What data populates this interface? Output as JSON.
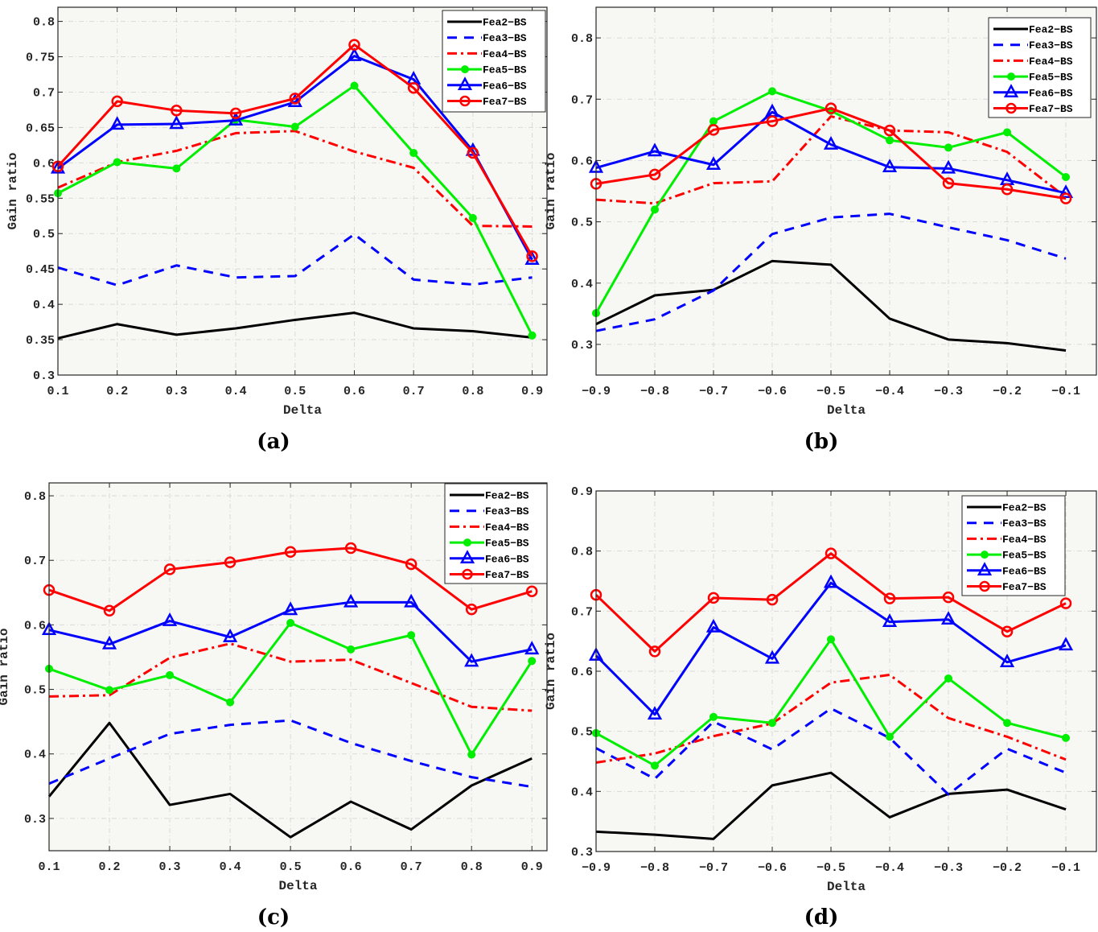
{
  "figure": {
    "captions": [
      "(a)",
      "(b)",
      "(c)",
      "(d)"
    ]
  },
  "chart_data": [
    {
      "panel": "(a)",
      "type": "line",
      "title": "",
      "xlabel": "Delta",
      "ylabel": "Gain ratio",
      "x": [
        0.1,
        0.2,
        0.3,
        0.4,
        0.5,
        0.6,
        0.7,
        0.8,
        0.9
      ],
      "xticks": [
        "0.1",
        "0.2",
        "0.3",
        "0.4",
        "0.5",
        "0.6",
        "0.7",
        "0.8",
        "0.9"
      ],
      "yticks": [
        "0.3",
        "0.35",
        "0.4",
        "0.45",
        "0.5",
        "0.55",
        "0.6",
        "0.65",
        "0.7",
        "0.75",
        "0.8"
      ],
      "xlim": [
        0.1,
        0.925
      ],
      "ylim": [
        0.3,
        0.82
      ],
      "grid": true,
      "legend_position": "top-right",
      "series": [
        {
          "name": "Fea2-BS",
          "values": [
            0.352,
            0.372,
            0.357,
            0.366,
            0.378,
            0.388,
            0.366,
            0.362,
            0.353
          ]
        },
        {
          "name": "Fea3-BS",
          "values": [
            0.452,
            0.427,
            0.455,
            0.438,
            0.44,
            0.499,
            0.435,
            0.428,
            0.438
          ]
        },
        {
          "name": "Fea4-BS",
          "values": [
            0.565,
            0.601,
            0.617,
            0.642,
            0.645,
            0.616,
            0.593,
            0.511,
            0.51
          ]
        },
        {
          "name": "Fea5-BS",
          "values": [
            0.557,
            0.601,
            0.592,
            0.661,
            0.651,
            0.709,
            0.614,
            0.522,
            0.356
          ]
        },
        {
          "name": "Fea6-BS",
          "values": [
            0.592,
            0.654,
            0.655,
            0.66,
            0.686,
            0.751,
            0.718,
            0.617,
            0.463
          ]
        },
        {
          "name": "Fea7-BS",
          "values": [
            0.595,
            0.687,
            0.674,
            0.67,
            0.691,
            0.767,
            0.706,
            0.614,
            0.468
          ]
        }
      ]
    },
    {
      "panel": "(b)",
      "type": "line",
      "title": "",
      "xlabel": "Delta",
      "ylabel": "Gain ratio",
      "x": [
        -0.9,
        -0.8,
        -0.7,
        -0.6,
        -0.5,
        -0.4,
        -0.3,
        -0.2,
        -0.1
      ],
      "xticks": [
        "-0.9",
        "-0.8",
        "-0.7",
        "-0.6",
        "-0.5",
        "-0.4",
        "-0.3",
        "-0.2",
        "-0.1"
      ],
      "yticks": [
        "0.3",
        "0.4",
        "0.5",
        "0.6",
        "0.7",
        "0.8"
      ],
      "xlim": [
        -0.9,
        -0.048
      ],
      "ylim": [
        0.25,
        0.85
      ],
      "grid": true,
      "legend_position": "top-right",
      "series": [
        {
          "name": "Fea2-BS",
          "values": [
            0.333,
            0.38,
            0.389,
            0.436,
            0.43,
            0.342,
            0.308,
            0.302,
            0.29
          ]
        },
        {
          "name": "Fea3-BS",
          "values": [
            0.322,
            0.341,
            0.388,
            0.48,
            0.507,
            0.513,
            0.491,
            0.47,
            0.44
          ]
        },
        {
          "name": "Fea4-BS",
          "values": [
            0.536,
            0.53,
            0.563,
            0.566,
            0.672,
            0.649,
            0.646,
            0.614,
            0.54
          ]
        },
        {
          "name": "Fea5-BS",
          "values": [
            0.351,
            0.52,
            0.664,
            0.713,
            0.681,
            0.633,
            0.621,
            0.646,
            0.573
          ]
        },
        {
          "name": "Fea6-BS",
          "values": [
            0.588,
            0.615,
            0.593,
            0.679,
            0.626,
            0.589,
            0.587,
            0.568,
            0.547
          ]
        },
        {
          "name": "Fea7-BS",
          "values": [
            0.562,
            0.577,
            0.65,
            0.664,
            0.685,
            0.649,
            0.563,
            0.553,
            0.538
          ]
        }
      ]
    },
    {
      "panel": "(c)",
      "type": "line",
      "title": "",
      "xlabel": "Delta",
      "ylabel": "Gain ratio",
      "x": [
        0.1,
        0.2,
        0.3,
        0.4,
        0.5,
        0.6,
        0.7,
        0.8,
        0.9
      ],
      "xticks": [
        "0.1",
        "0.2",
        "0.3",
        "0.4",
        "0.5",
        "0.6",
        "0.7",
        "0.8",
        "0.9"
      ],
      "yticks": [
        "0.3",
        "0.4",
        "0.5",
        "0.6",
        "0.7",
        "0.8"
      ],
      "xlim": [
        0.1,
        0.925
      ],
      "ylim": [
        0.25,
        0.82
      ],
      "grid": true,
      "legend_position": "top-right",
      "series": [
        {
          "name": "Fea2-BS",
          "values": [
            0.334,
            0.448,
            0.321,
            0.338,
            0.271,
            0.326,
            0.283,
            0.351,
            0.393
          ]
        },
        {
          "name": "Fea3-BS",
          "values": [
            0.354,
            0.393,
            0.431,
            0.445,
            0.452,
            0.417,
            0.389,
            0.364,
            0.349
          ]
        },
        {
          "name": "Fea4-BS",
          "values": [
            0.489,
            0.491,
            0.549,
            0.571,
            0.543,
            0.546,
            0.51,
            0.473,
            0.467
          ]
        },
        {
          "name": "Fea5-BS",
          "values": [
            0.532,
            0.499,
            0.522,
            0.48,
            0.603,
            0.562,
            0.584,
            0.399,
            0.544
          ]
        },
        {
          "name": "Fea6-BS",
          "values": [
            0.592,
            0.57,
            0.606,
            0.581,
            0.623,
            0.635,
            0.635,
            0.543,
            0.562
          ]
        },
        {
          "name": "Fea7-BS",
          "values": [
            0.654,
            0.622,
            0.686,
            0.697,
            0.713,
            0.719,
            0.694,
            0.624,
            0.652
          ]
        }
      ]
    },
    {
      "panel": "(d)",
      "type": "line",
      "title": "",
      "xlabel": "Delta",
      "ylabel": "Gain ratio",
      "x": [
        -0.9,
        -0.8,
        -0.7,
        -0.6,
        -0.5,
        -0.4,
        -0.3,
        -0.2,
        -0.1
      ],
      "xticks": [
        "-0.9",
        "-0.8",
        "-0.7",
        "-0.6",
        "-0.5",
        "-0.4",
        "-0.3",
        "-0.2",
        "-0.1"
      ],
      "yticks": [
        "0.3",
        "0.4",
        "0.5",
        "0.6",
        "0.7",
        "0.8",
        "0.9"
      ],
      "xlim": [
        -0.9,
        -0.048
      ],
      "ylim": [
        0.3,
        0.9
      ],
      "grid": true,
      "legend_position": "top-right",
      "series": [
        {
          "name": "Fea2-BS",
          "values": [
            0.333,
            0.328,
            0.321,
            0.41,
            0.431,
            0.357,
            0.396,
            0.403,
            0.37
          ]
        },
        {
          "name": "Fea3-BS",
          "values": [
            0.472,
            0.421,
            0.516,
            0.47,
            0.538,
            0.489,
            0.395,
            0.471,
            0.431
          ]
        },
        {
          "name": "Fea4-BS",
          "values": [
            0.448,
            0.463,
            0.492,
            0.513,
            0.581,
            0.594,
            0.522,
            0.491,
            0.453
          ]
        },
        {
          "name": "Fea5-BS",
          "values": [
            0.497,
            0.443,
            0.524,
            0.514,
            0.653,
            0.491,
            0.588,
            0.514,
            0.489
          ]
        },
        {
          "name": "Fea6-BS",
          "values": [
            0.626,
            0.528,
            0.673,
            0.621,
            0.747,
            0.682,
            0.686,
            0.615,
            0.643
          ]
        },
        {
          "name": "Fea7-BS",
          "values": [
            0.727,
            0.633,
            0.722,
            0.719,
            0.796,
            0.721,
            0.723,
            0.666,
            0.713
          ]
        }
      ]
    }
  ],
  "series_style": {
    "Fea2-BS": {
      "color": "#000000",
      "dash": "solid",
      "marker": "none"
    },
    "Fea3-BS": {
      "color": "#0000ff",
      "dash": "dashed",
      "marker": "none"
    },
    "Fea4-BS": {
      "color": "#ff0000",
      "dash": "dashdot",
      "marker": "none"
    },
    "Fea5-BS": {
      "color": "#00ee00",
      "dash": "solid",
      "marker": "dot"
    },
    "Fea6-BS": {
      "color": "#0000ff",
      "dash": "solid",
      "marker": "triangle"
    },
    "Fea7-BS": {
      "color": "#ff0000",
      "dash": "solid",
      "marker": "circle"
    }
  },
  "colors": {
    "plot_background": "#f7f7f3",
    "axis": "#262626",
    "grid": "#d9d9d9"
  }
}
